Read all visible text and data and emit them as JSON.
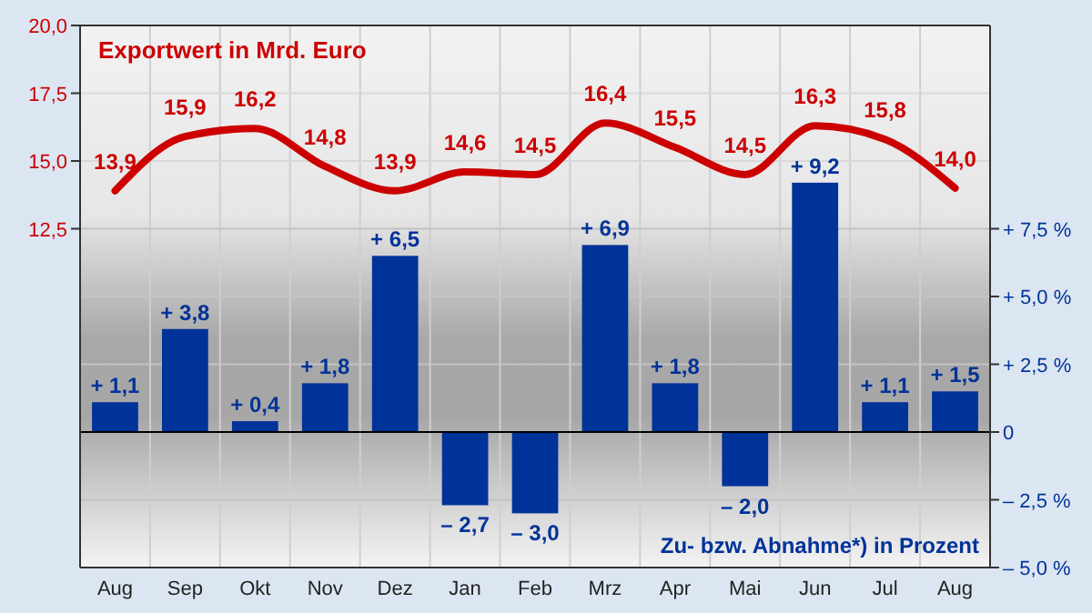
{
  "chart_data": {
    "type": "bar",
    "ylabel": "Exportwert in Mrd. Euro",
    "y2label": "Zu- bzw. Abnahme*) in Prozent",
    "categories": [
      "Aug",
      "Sep",
      "Okt",
      "Nov",
      "Dez",
      "Jan",
      "Feb",
      "Mrz",
      "Apr",
      "Mai",
      "Jun",
      "Jul",
      "Aug"
    ],
    "series": [
      {
        "type": "line",
        "axis": "y",
        "color": "#cc0000",
        "values": [
          13.9,
          15.9,
          16.2,
          14.8,
          13.9,
          14.6,
          14.5,
          16.4,
          15.5,
          14.5,
          16.3,
          15.8,
          14.0
        ],
        "value_labels": [
          "13,9",
          "15,9",
          "16,2",
          "14,8",
          "13,9",
          "14,6",
          "14,5",
          "16,4",
          "15,5",
          "14,5",
          "16,3",
          "15,8",
          "14,0"
        ]
      },
      {
        "axis": "y2",
        "color": "#003399",
        "values": [
          1.1,
          3.8,
          0.4,
          1.8,
          6.5,
          -2.7,
          -3.0,
          6.9,
          1.8,
          -2.0,
          9.2,
          1.1,
          1.5
        ],
        "value_labels": [
          "+ 1,1",
          "+ 3,8",
          "+ 0,4",
          "+ 1,8",
          "+ 6,5",
          "– 2,7",
          "– 3,0",
          "+ 6,9",
          "+ 1,8",
          "– 2,0",
          "+ 9,2",
          "+ 1,1",
          "+ 1,5"
        ]
      }
    ],
    "ylim": [
      0,
      20
    ],
    "yticks": [
      {
        "value": 12.5,
        "label": "12,5"
      },
      {
        "value": 15,
        "label": "15,0"
      },
      {
        "value": 17.5,
        "label": "17,5"
      },
      {
        "value": 20,
        "label": "20,0"
      }
    ],
    "y2lim": [
      -5,
      15
    ],
    "y2ticks": [
      {
        "value": -5,
        "label": "– 5,0 %"
      },
      {
        "value": -2.5,
        "label": "– 2,5 %"
      },
      {
        "value": 0,
        "label": "0"
      },
      {
        "value": 2.5,
        "label": "+ 2,5 %"
      },
      {
        "value": 5,
        "label": "+ 5,0 %"
      },
      {
        "value": 7.5,
        "label": "+ 7,5 %"
      }
    ],
    "grid": true,
    "marker": "none",
    "line_style": "solid"
  }
}
